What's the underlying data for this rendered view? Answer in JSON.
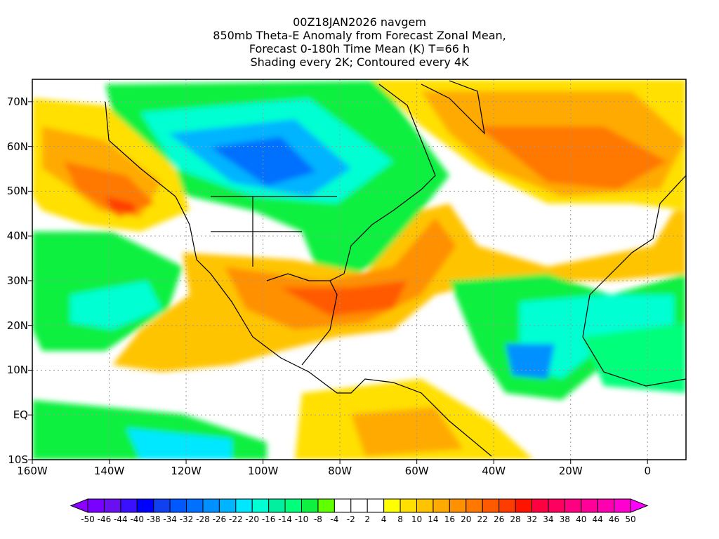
{
  "title": {
    "line1": "00Z18JAN2026 navgem",
    "line2": "850mb Theta-E Anomaly from Forecast Zonal Mean,",
    "line3": "Forecast 0-180h Time Mean (K) T=66 h",
    "line4": "Shading every 2K; Contoured every 4K"
  },
  "map": {
    "lon_range": [
      -160,
      10
    ],
    "lat_range": [
      -10,
      75
    ],
    "lat_labels": [
      {
        "lat": 70,
        "label": "70N"
      },
      {
        "lat": 60,
        "label": "60N"
      },
      {
        "lat": 50,
        "label": "50N"
      },
      {
        "lat": 40,
        "label": "40N"
      },
      {
        "lat": 30,
        "label": "30N"
      },
      {
        "lat": 20,
        "label": "20N"
      },
      {
        "lat": 10,
        "label": "10N"
      },
      {
        "lat": 0,
        "label": "EQ"
      },
      {
        "lat": -10,
        "label": "10S"
      }
    ],
    "lon_labels": [
      {
        "lon": -160,
        "label": "160W"
      },
      {
        "lon": -140,
        "label": "140W"
      },
      {
        "lon": -120,
        "label": "120W"
      },
      {
        "lon": -100,
        "label": "100W"
      },
      {
        "lon": -80,
        "label": "80W"
      },
      {
        "lon": -60,
        "label": "60W"
      },
      {
        "lon": -40,
        "label": "40W"
      },
      {
        "lon": -20,
        "label": "20W"
      },
      {
        "lon": 0,
        "label": "0"
      }
    ]
  },
  "colorbar": {
    "labels": [
      "-50",
      "-46",
      "-44",
      "-40",
      "-38",
      "-34",
      "-32",
      "-28",
      "-26",
      "-22",
      "-20",
      "-16",
      "-14",
      "-10",
      "-8",
      "-4",
      "-2",
      "2",
      "4",
      "8",
      "10",
      "14",
      "16",
      "20",
      "22",
      "26",
      "28",
      "32",
      "34",
      "38",
      "40",
      "44",
      "46",
      "50"
    ],
    "colors": [
      "#7a00ff",
      "#6a10f0",
      "#3a10ff",
      "#0000ff",
      "#1040f0",
      "#0058ff",
      "#0070ff",
      "#0090ff",
      "#00b4ff",
      "#00e8ff",
      "#00ffd2",
      "#00f0a0",
      "#00ff7a",
      "#10f040",
      "#60ff00",
      "#ffffff",
      "#ffffff",
      "#ffffff",
      "#ffff00",
      "#ffe000",
      "#ffc400",
      "#ffaa00",
      "#ff9000",
      "#ff7800",
      "#ff5a00",
      "#ff3c00",
      "#ff1400",
      "#ff0040",
      "#ff0060",
      "#ff0080",
      "#ff0098",
      "#ff00b0",
      "#ff00d0"
    ],
    "low_color": "#8c00ff",
    "high_color": "#ff00ff"
  }
}
